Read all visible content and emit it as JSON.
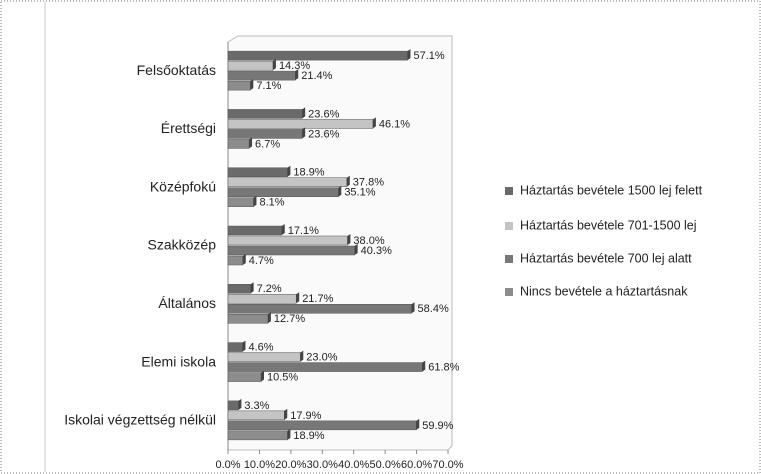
{
  "chart_data": {
    "type": "bar",
    "orientation": "horizontal",
    "categories": [
      "Felsőoktatás",
      "Érettségi",
      "Középfokú",
      "Szakközép",
      "Általános",
      "Elemi iskola",
      "Iskolai végzettség nélkül"
    ],
    "series": [
      {
        "name": "Háztartás bevétele 1500 lej felett",
        "color": "#6a6a6a",
        "values": [
          57.1,
          23.6,
          18.9,
          17.1,
          7.2,
          4.6,
          3.3
        ],
        "value_labels": [
          "57.1%",
          "23.6%",
          "18.9%",
          "17.1%",
          "7.2%",
          "4.6%",
          "3.3%"
        ]
      },
      {
        "name": "Háztartás bevétele 701-1500 lej",
        "color": "#c4c4c4",
        "values": [
          14.3,
          46.1,
          37.8,
          38.0,
          21.7,
          23.0,
          17.9
        ],
        "value_labels": [
          "14.3%",
          "46.1%",
          "37.8%",
          "38.0%",
          "21.7%",
          "23.0%",
          "17.9%"
        ]
      },
      {
        "name": "Háztartás bevétele 700 lej alatt",
        "color": "#777777",
        "values": [
          21.4,
          23.6,
          35.1,
          40.3,
          58.4,
          61.8,
          59.9
        ],
        "value_labels": [
          "21.4%",
          "23.6%",
          "35.1%",
          "40.3%",
          "58.4%",
          "61.8%",
          "59.9%"
        ]
      },
      {
        "name": "Nincs bevétele a háztartásnak",
        "color": "#8c8c8c",
        "values": [
          7.1,
          6.7,
          8.1,
          4.7,
          12.7,
          10.5,
          18.9
        ],
        "value_labels": [
          "7.1%",
          "6.7%",
          "8.1%",
          "4.7%",
          "12.7%",
          "10.5%",
          "18.9%"
        ]
      }
    ],
    "xlim": [
      0,
      70
    ],
    "xticks": [
      {
        "value": 0,
        "label": "0.0%"
      },
      {
        "value": 10,
        "label": "10.0%"
      },
      {
        "value": 20,
        "label": "20.0%"
      },
      {
        "value": 30,
        "label": "30.0%"
      },
      {
        "value": 40,
        "label": "40.0%"
      },
      {
        "value": 50,
        "label": "50.0%"
      },
      {
        "value": 60,
        "label": "60.0%"
      },
      {
        "value": 70,
        "label": "70.0%"
      }
    ],
    "legend": "right"
  }
}
